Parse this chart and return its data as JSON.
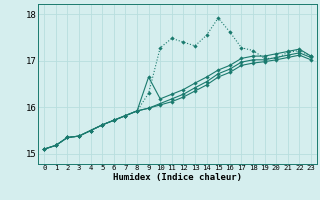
{
  "xlabel": "Humidex (Indice chaleur)",
  "x_ticks": [
    0,
    1,
    2,
    3,
    4,
    5,
    6,
    7,
    8,
    9,
    10,
    11,
    12,
    13,
    14,
    15,
    16,
    17,
    18,
    19,
    20,
    21,
    22,
    23
  ],
  "x_tick_labels": [
    "0",
    "1",
    "2",
    "3",
    "4",
    "5",
    "6",
    "7",
    "8",
    "9",
    "10",
    "11",
    "12",
    "13",
    "14",
    "15",
    "16",
    "17",
    "18",
    "19",
    "20",
    "21",
    "22",
    "23"
  ],
  "ylim": [
    14.78,
    18.22
  ],
  "xlim": [
    -0.5,
    23.5
  ],
  "yticks": [
    15,
    16,
    17,
    18
  ],
  "bg_color": "#d5eeee",
  "line_color": "#1a7a6e",
  "grid_color": "#b8dede",
  "line1_y": [
    15.1,
    15.18,
    15.35,
    15.38,
    15.5,
    15.62,
    15.72,
    15.82,
    15.92,
    16.3,
    17.28,
    17.48,
    17.4,
    17.32,
    17.55,
    17.92,
    17.62,
    17.28,
    17.22,
    17.05,
    17.05,
    17.18,
    17.22,
    17.1
  ],
  "line2_y": [
    15.1,
    15.18,
    15.35,
    15.38,
    15.5,
    15.62,
    15.72,
    15.82,
    15.92,
    16.65,
    16.18,
    16.28,
    16.38,
    16.52,
    16.65,
    16.8,
    16.9,
    17.05,
    17.1,
    17.1,
    17.15,
    17.2,
    17.25,
    17.1
  ],
  "line3_y": [
    15.1,
    15.18,
    15.35,
    15.38,
    15.5,
    15.62,
    15.72,
    15.82,
    15.92,
    15.98,
    16.08,
    16.18,
    16.28,
    16.42,
    16.55,
    16.72,
    16.82,
    16.97,
    17.02,
    17.02,
    17.07,
    17.12,
    17.17,
    17.07
  ],
  "line4_y": [
    15.1,
    15.18,
    15.35,
    15.38,
    15.5,
    15.62,
    15.72,
    15.82,
    15.92,
    15.98,
    16.05,
    16.12,
    16.22,
    16.35,
    16.48,
    16.65,
    16.75,
    16.9,
    16.95,
    16.98,
    17.02,
    17.07,
    17.12,
    17.02
  ]
}
